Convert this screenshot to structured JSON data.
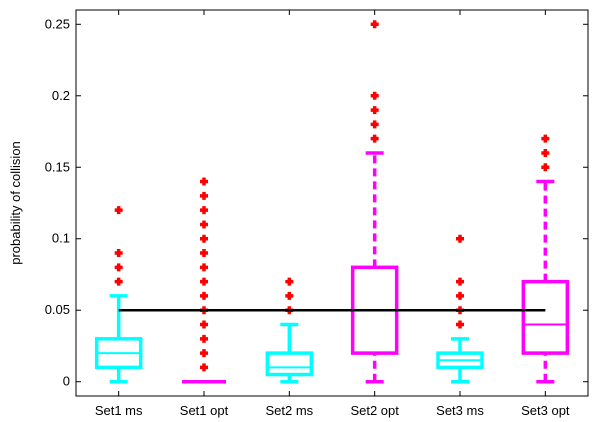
{
  "chart_data": {
    "type": "box",
    "title": "",
    "xlabel": "",
    "ylabel": "probability of collision",
    "ylim": [
      -0.01,
      0.26
    ],
    "yticks": [
      0,
      0.05,
      0.1,
      0.15,
      0.2,
      0.25
    ],
    "ytick_labels": [
      "0",
      "0.05",
      "0.1",
      "0.15",
      "0.2",
      "0.25"
    ],
    "categories": [
      "Set1 ms",
      "Set1 opt",
      "Set2 ms",
      "Set2 opt",
      "Set3 ms",
      "Set3 opt"
    ],
    "grid": false,
    "reference_line": {
      "y": 0.05,
      "from_category": 0,
      "to_category": 5,
      "color": "#000000"
    },
    "colors": {
      "ms": "#00ffff",
      "opt": "#ff00ff",
      "outlier": "#ff0000"
    },
    "boxes": [
      {
        "category": "Set1 ms",
        "whisker_low": 0.0,
        "q1": 0.01,
        "median": 0.02,
        "q3": 0.03,
        "whisker_high": 0.06,
        "outliers": [
          0.07,
          0.08,
          0.09,
          0.12
        ],
        "color": "#00ffff",
        "style": "solid"
      },
      {
        "category": "Set1 opt",
        "whisker_low": 0.0,
        "q1": 0.0,
        "median": 0.0,
        "q3": 0.0,
        "whisker_high": 0.0,
        "outliers": [
          0.01,
          0.02,
          0.03,
          0.04,
          0.05,
          0.06,
          0.07,
          0.08,
          0.09,
          0.1,
          0.11,
          0.12,
          0.13,
          0.14
        ],
        "color": "#ff00ff",
        "style": "solid"
      },
      {
        "category": "Set2 ms",
        "whisker_low": 0.0,
        "q1": 0.005,
        "median": 0.01,
        "q3": 0.02,
        "whisker_high": 0.04,
        "outliers": [
          0.05,
          0.06,
          0.07
        ],
        "color": "#00ffff",
        "style": "solid"
      },
      {
        "category": "Set2 opt",
        "whisker_low": 0.0,
        "q1": 0.02,
        "median": 0.05,
        "q3": 0.08,
        "whisker_high": 0.16,
        "outliers": [
          0.17,
          0.18,
          0.19,
          0.2,
          0.25
        ],
        "color": "#ff00ff",
        "style": "dashed"
      },
      {
        "category": "Set3 ms",
        "whisker_low": 0.0,
        "q1": 0.01,
        "median": 0.015,
        "q3": 0.02,
        "whisker_high": 0.03,
        "outliers": [
          0.04,
          0.05,
          0.06,
          0.07,
          0.1
        ],
        "color": "#00ffff",
        "style": "solid"
      },
      {
        "category": "Set3 opt",
        "whisker_low": 0.0,
        "q1": 0.02,
        "median": 0.04,
        "q3": 0.07,
        "whisker_high": 0.14,
        "outliers": [
          0.15,
          0.16,
          0.17
        ],
        "color": "#ff00ff",
        "style": "dashed"
      }
    ]
  }
}
